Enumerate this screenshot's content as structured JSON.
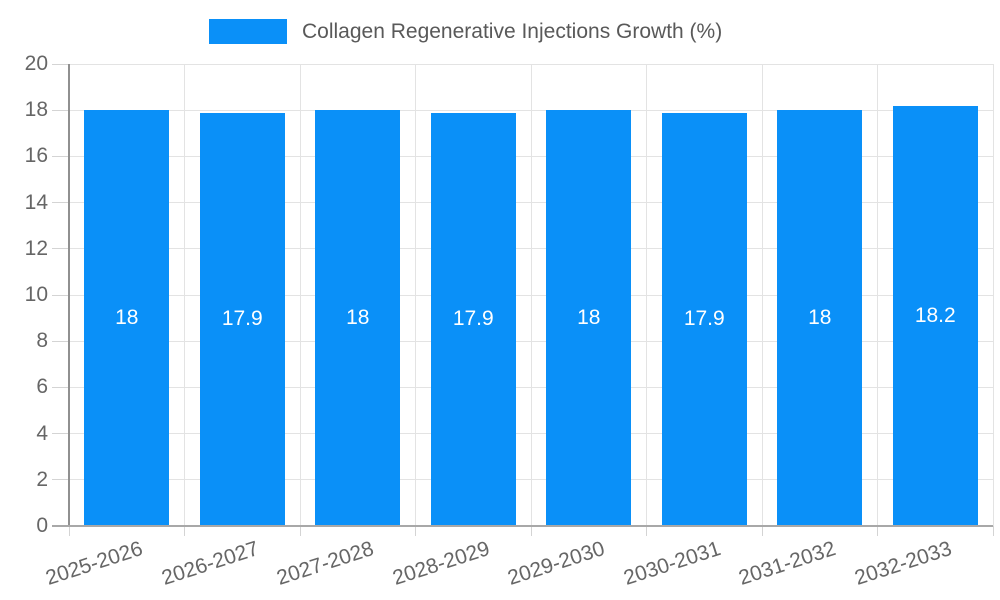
{
  "legend": {
    "label": "Collagen Regenerative Injections Growth (%)"
  },
  "chart_data": {
    "type": "bar",
    "title": "Collagen Regenerative Injections Growth (%)",
    "categories": [
      "2025-2026",
      "2026-2027",
      "2027-2028",
      "2028-2029",
      "2029-2030",
      "2030-2031",
      "2031-2032",
      "2032-2033"
    ],
    "series": [
      {
        "name": "Collagen Regenerative Injections Growth (%)",
        "values": [
          18,
          17.9,
          18,
          17.9,
          18,
          17.9,
          18,
          18.2
        ]
      }
    ],
    "value_labels": [
      "18",
      "17.9",
      "18",
      "17.9",
      "18",
      "17.9",
      "18",
      "18.2"
    ],
    "xlabel": "",
    "ylabel": "",
    "ylim": [
      0,
      20
    ],
    "yticks": [
      0,
      2,
      4,
      6,
      8,
      10,
      12,
      14,
      16,
      18,
      20
    ],
    "grid": true,
    "legend_position": "top-center",
    "value_label_position": "inside-center",
    "x_label_rotation_deg": -18,
    "colors": {
      "bar": "#0a90f8",
      "grid": "#e3e3e3",
      "axis": "#909090",
      "tick": "#d4d4d4",
      "tick_label": "#666666",
      "legend_text": "#595959",
      "value_label": "#ffffff",
      "background": "#ffffff"
    }
  }
}
